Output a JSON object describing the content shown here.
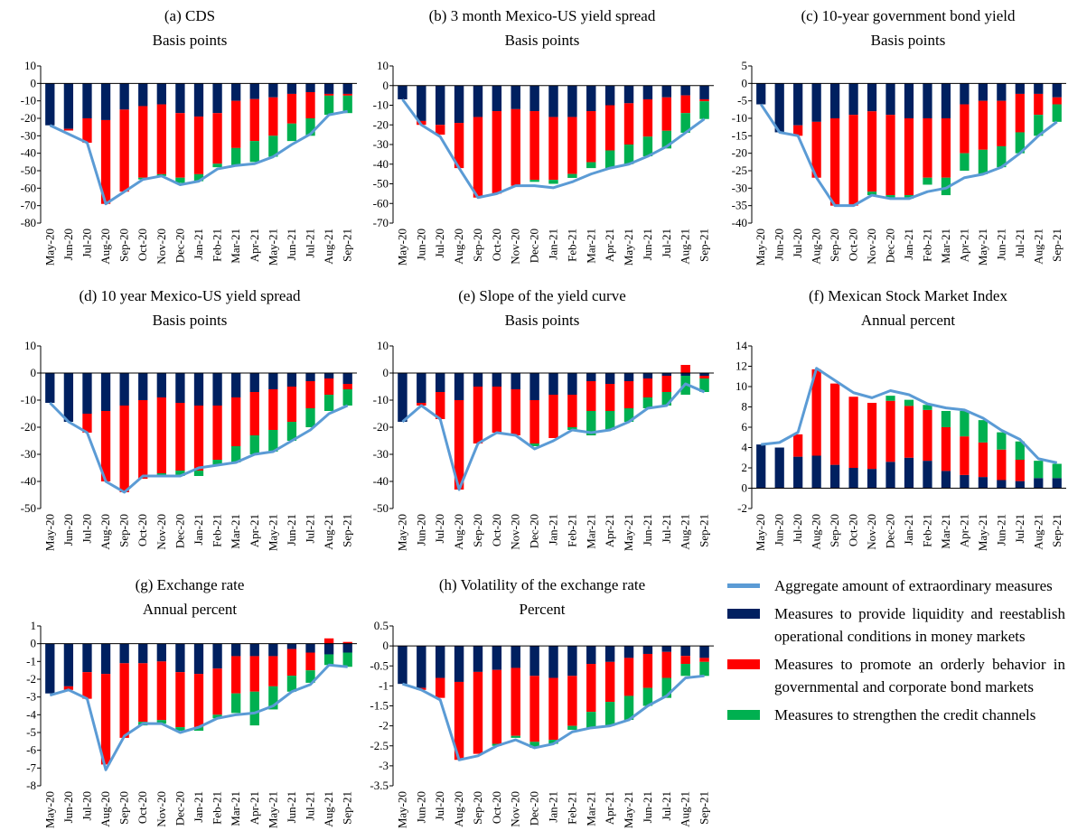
{
  "chart_data": [
    {
      "type": "bar",
      "title": "(a) CDS",
      "subtitle": "Basis points",
      "categories": [
        "May-20",
        "Jun-20",
        "Jul-20",
        "Aug-20",
        "Sep-20",
        "Oct-20",
        "Nov-20",
        "Dec-20",
        "Jan-21",
        "Feb-21",
        "Mar-21",
        "Apr-21",
        "May-21",
        "Jun-21",
        "Jul-21",
        "Aug-21",
        "Sep-21"
      ],
      "ylim": [
        -80,
        10
      ],
      "yticks": [
        10,
        0,
        -10,
        -20,
        -30,
        -40,
        -50,
        -60,
        -70,
        -80
      ],
      "series": [
        {
          "type": "line",
          "color": "#5b9bd5",
          "values": [
            -24,
            -29,
            -34,
            -69,
            -62,
            -55,
            -53,
            -58,
            -56,
            -49,
            -47,
            -46,
            -42,
            -35,
            -29,
            -18,
            -16
          ]
        },
        {
          "color": "#002060",
          "values": [
            -24,
            -26,
            -20,
            -21,
            -15,
            -13,
            -12,
            -17,
            -19,
            -17,
            -10,
            -9,
            -8,
            -6,
            -5,
            -6,
            -6
          ]
        },
        {
          "color": "#ff0000",
          "values": [
            0,
            -1,
            -14,
            -48,
            -47,
            -41,
            -40,
            -37,
            -33,
            -29,
            -27,
            -24,
            -22,
            -17,
            -15,
            -1,
            -1
          ]
        },
        {
          "color": "#00b050",
          "values": [
            0,
            0,
            0,
            0,
            0,
            -1,
            -1,
            -3,
            -4,
            -2,
            -10,
            -12,
            -12,
            -10,
            -10,
            -11,
            -10
          ]
        }
      ]
    },
    {
      "type": "bar",
      "title": "(b) 3 month Mexico-US yield spread",
      "subtitle": "Basis points",
      "categories": [
        "May-20",
        "Jun-20",
        "Jul-20",
        "Aug-20",
        "Sep-20",
        "Oct-20",
        "Nov-20",
        "Dec-20",
        "Jan-21",
        "Feb-21",
        "Mar-21",
        "Apr-21",
        "May-21",
        "Jun-21",
        "Jul-21",
        "Aug-21",
        "Sep-21"
      ],
      "ylim": [
        -70,
        10
      ],
      "yticks": [
        10,
        0,
        -10,
        -20,
        -30,
        -40,
        -50,
        -60,
        -70
      ],
      "series": [
        {
          "type": "line",
          "color": "#5b9bd5",
          "values": [
            -7,
            -20,
            -26,
            -42,
            -57,
            -55,
            -51,
            -51,
            -52,
            -49,
            -45,
            -42,
            -40,
            -36,
            -31,
            -24,
            -17
          ]
        },
        {
          "color": "#002060",
          "values": [
            -7,
            -18,
            -20,
            -19,
            -16,
            -13,
            -12,
            -13,
            -16,
            -16,
            -13,
            -10,
            -9,
            -7,
            -6,
            -5,
            -7
          ]
        },
        {
          "color": "#ff0000",
          "values": [
            0,
            -2,
            -5,
            -23,
            -41,
            -42,
            -39,
            -35,
            -32,
            -29,
            -26,
            -23,
            -21,
            -19,
            -17,
            -9,
            -1
          ]
        },
        {
          "color": "#00b050",
          "values": [
            0,
            0,
            0,
            0,
            0,
            0,
            0,
            -1,
            -2,
            -2,
            -3,
            -9,
            -10,
            -10,
            -9,
            -10,
            -9
          ]
        }
      ]
    },
    {
      "type": "bar",
      "title": "(c) 10-year government bond yield",
      "subtitle": "Basis points",
      "categories": [
        "May-20",
        "Jun-20",
        "Jul-20",
        "Aug-20",
        "Sep-20",
        "Oct-20",
        "Nov-20",
        "Dec-20",
        "Jan-21",
        "Feb-21",
        "Mar-21",
        "Apr-21",
        "May-21",
        "Jun-21",
        "Jul-21",
        "Aug-21",
        "Sep-21"
      ],
      "ylim": [
        -40,
        5
      ],
      "yticks": [
        5,
        0,
        -5,
        -10,
        -15,
        -20,
        -25,
        -30,
        -35,
        -40
      ],
      "series": [
        {
          "type": "line",
          "color": "#5b9bd5",
          "values": [
            -6,
            -14,
            -15,
            -27,
            -35,
            -35,
            -32,
            -33,
            -33,
            -31,
            -30,
            -27,
            -26,
            -24,
            -20,
            -15,
            -11
          ]
        },
        {
          "color": "#002060",
          "values": [
            -6,
            -14,
            -12,
            -11,
            -10,
            -9,
            -8,
            -9,
            -10,
            -10,
            -10,
            -6,
            -5,
            -5,
            -3,
            -3,
            -4
          ]
        },
        {
          "color": "#ff0000",
          "values": [
            0,
            0,
            -3,
            -16,
            -25,
            -26,
            -23,
            -23,
            -22,
            -17,
            -17,
            -14,
            -14,
            -13,
            -11,
            -6,
            -2
          ]
        },
        {
          "color": "#00b050",
          "values": [
            0,
            0,
            0,
            0,
            0,
            0,
            -1,
            -1,
            -1,
            -2,
            -5,
            -5,
            -7,
            -6,
            -6,
            -6,
            -5
          ]
        }
      ]
    },
    {
      "type": "bar",
      "title": "(d) 10 year Mexico-US yield spread",
      "subtitle": "Basis points",
      "categories": [
        "May-20",
        "Jun-20",
        "Jul-20",
        "Aug-20",
        "Sep-20",
        "Oct-20",
        "Nov-20",
        "Dec-20",
        "Jan-21",
        "Feb-21",
        "Mar-21",
        "Apr-21",
        "May-21",
        "Jun-21",
        "Jul-21",
        "Aug-21",
        "Sep-21"
      ],
      "ylim": [
        -50,
        10
      ],
      "yticks": [
        10,
        0,
        -10,
        -20,
        -30,
        -40,
        -50
      ],
      "series": [
        {
          "type": "line",
          "color": "#5b9bd5",
          "values": [
            -11,
            -18,
            -22,
            -40,
            -44,
            -38,
            -38,
            -38,
            -35,
            -34,
            -33,
            -30,
            -29,
            -25,
            -21,
            -15,
            -12
          ]
        },
        {
          "color": "#002060",
          "values": [
            -11,
            -18,
            -15,
            -14,
            -12,
            -10,
            -9,
            -11,
            -12,
            -12,
            -9,
            -7,
            -6,
            -5,
            -3,
            -2,
            -4
          ]
        },
        {
          "color": "#ff0000",
          "values": [
            0,
            0,
            -7,
            -26,
            -32,
            -29,
            -28,
            -25,
            -24,
            -20,
            -18,
            -16,
            -15,
            -13,
            -10,
            -6,
            -2
          ]
        },
        {
          "color": "#00b050",
          "values": [
            0,
            0,
            0,
            0,
            0,
            0,
            -1,
            -2,
            -2,
            -2,
            -6,
            -7,
            -8,
            -7,
            -7,
            -6,
            -6
          ]
        }
      ]
    },
    {
      "type": "bar",
      "title": "(e) Slope of the yield curve",
      "subtitle": "Basis points",
      "categories": [
        "May-20",
        "Jun-20",
        "Jul-20",
        "Aug-20",
        "Sep-20",
        "Oct-20",
        "Nov-20",
        "Dec-20",
        "Jan-21",
        "Feb-21",
        "Mar-21",
        "Apr-21",
        "May-21",
        "Jun-21",
        "Jul-21",
        "Aug-21",
        "Sep-21"
      ],
      "ylim": [
        -50,
        10
      ],
      "yticks": [
        10,
        0,
        -10,
        -20,
        -30,
        -40,
        -50
      ],
      "series": [
        {
          "type": "line",
          "color": "#5b9bd5",
          "values": [
            -18,
            -12,
            -17,
            -43,
            -26,
            -22,
            -23,
            -28,
            -25,
            -21,
            -22,
            -21,
            -18,
            -13,
            -12,
            -4,
            -7
          ]
        },
        {
          "color": "#002060",
          "values": [
            -18,
            -11,
            -7,
            -10,
            -5,
            -5,
            -6,
            -10,
            -8,
            -8,
            -3,
            -4,
            -3,
            -2,
            -1,
            -1,
            -1
          ]
        },
        {
          "color": "#ff0000",
          "values": [
            0,
            -1,
            -10,
            -33,
            -21,
            -17,
            -17,
            -16,
            -16,
            -12,
            -11,
            -10,
            -10,
            -7,
            -6,
            3,
            -1
          ]
        },
        {
          "color": "#00b050",
          "values": [
            0,
            0,
            0,
            0,
            0,
            0,
            0,
            -1,
            0,
            -1,
            -9,
            -7,
            -5,
            -4,
            -5,
            -7,
            -5
          ]
        }
      ]
    },
    {
      "type": "bar",
      "title": "(f) Mexican Stock Market Index",
      "subtitle": "Annual percent",
      "categories": [
        "May-20",
        "Jun-20",
        "Jul-20",
        "Aug-20",
        "Sep-20",
        "Oct-20",
        "Nov-20",
        "Dec-20",
        "Jan-21",
        "Feb-21",
        "Mar-21",
        "Apr-21",
        "May-21",
        "Jun-21",
        "Jul-21",
        "Aug-21",
        "Sep-21"
      ],
      "ylim": [
        -2,
        14
      ],
      "yticks": [
        14,
        12,
        10,
        8,
        6,
        4,
        2,
        0,
        -2
      ],
      "series": [
        {
          "type": "line",
          "color": "#5b9bd5",
          "values": [
            4.3,
            4.5,
            5.5,
            11.8,
            10.6,
            9.4,
            8.9,
            9.6,
            9.2,
            8.3,
            7.9,
            7.7,
            6.9,
            5.7,
            4.8,
            2.9,
            2.5
          ]
        },
        {
          "color": "#002060",
          "values": [
            4.3,
            4.0,
            3.1,
            3.2,
            2.3,
            2.0,
            1.9,
            2.6,
            3.0,
            2.7,
            1.7,
            1.3,
            1.1,
            0.8,
            0.7,
            1.0,
            1.0
          ]
        },
        {
          "color": "#ff0000",
          "values": [
            0,
            0,
            2.2,
            8.5,
            8.0,
            7.0,
            6.5,
            6.0,
            5.1,
            5.0,
            4.3,
            3.8,
            3.4,
            3.0,
            2.1,
            0,
            0
          ]
        },
        {
          "color": "#00b050",
          "values": [
            0,
            0,
            0,
            0,
            0,
            0,
            0,
            0.5,
            0.6,
            0.5,
            1.6,
            2.5,
            2.2,
            1.7,
            1.8,
            1.7,
            1.4
          ]
        }
      ]
    },
    {
      "type": "bar",
      "title": "(g) Exchange rate",
      "subtitle": "Annual percent",
      "categories": [
        "May-20",
        "Jun-20",
        "Jul-20",
        "Aug-20",
        "Sep-20",
        "Oct-20",
        "Nov-20",
        "Dec-20",
        "Jan-21",
        "Feb-21",
        "Mar-21",
        "Apr-21",
        "May-21",
        "Jun-21",
        "Jul-21",
        "Aug-21",
        "Sep-21"
      ],
      "ylim": [
        -8,
        1
      ],
      "yticks": [
        1,
        0,
        -1,
        -2,
        -3,
        -4,
        -5,
        -6,
        -7,
        -8
      ],
      "series": [
        {
          "type": "line",
          "color": "#5b9bd5",
          "values": [
            -2.9,
            -2.6,
            -3.1,
            -7.1,
            -5.2,
            -4.5,
            -4.5,
            -5.0,
            -4.7,
            -4.2,
            -4.0,
            -3.9,
            -3.5,
            -2.7,
            -2.3,
            -1.2,
            -1.3
          ]
        },
        {
          "color": "#002060",
          "values": [
            -2.8,
            -2.4,
            -1.6,
            -1.7,
            -1.1,
            -1.1,
            -1.0,
            -1.6,
            -1.7,
            -1.4,
            -0.7,
            -0.7,
            -0.7,
            -0.3,
            -0.5,
            -0.6,
            -0.5
          ]
        },
        {
          "color": "#ff0000",
          "values": [
            0,
            -0.2,
            -1.5,
            -5.1,
            -4.2,
            -3.3,
            -3.3,
            -3.1,
            -3.0,
            -2.6,
            -2.1,
            -2.0,
            -1.7,
            -1.5,
            -1.0,
            0.3,
            0.1
          ]
        },
        {
          "color": "#00b050",
          "values": [
            0,
            0,
            0,
            0,
            0,
            -0.2,
            -0.2,
            -0.2,
            -0.2,
            -0.2,
            -1.1,
            -1.9,
            -1.3,
            -0.9,
            -0.7,
            -0.6,
            -0.8
          ]
        }
      ]
    },
    {
      "type": "bar",
      "title": "(h) Volatility of the exchange rate",
      "subtitle": "Percent",
      "categories": [
        "May-20",
        "Jun-20",
        "Jul-20",
        "Aug-20",
        "Sep-20",
        "Oct-20",
        "Nov-20",
        "Dec-20",
        "Jan-21",
        "Feb-21",
        "Mar-21",
        "Apr-21",
        "May-21",
        "Jun-21",
        "Jul-21",
        "Aug-21",
        "Sep-21"
      ],
      "ylim": [
        -3.5,
        0.5
      ],
      "yticks": [
        0.5,
        0,
        -0.5,
        -1,
        -1.5,
        -2,
        -2.5,
        -3,
        -3.5
      ],
      "series": [
        {
          "type": "line",
          "name": "Aggregate amount of extraordinary measures",
          "color": "#5b9bd5",
          "values": [
            -0.95,
            -1.1,
            -1.35,
            -2.85,
            -2.75,
            -2.5,
            -2.35,
            -2.55,
            -2.45,
            -2.15,
            -2.05,
            -2.0,
            -1.85,
            -1.5,
            -1.25,
            -0.8,
            -0.75
          ]
        },
        {
          "name": "Measures to provide liquidity and reestablish operational conditions in money markets",
          "color": "#002060",
          "values": [
            -0.95,
            -1.05,
            -0.8,
            -0.9,
            -0.65,
            -0.6,
            -0.55,
            -0.75,
            -0.8,
            -0.75,
            -0.45,
            -0.4,
            -0.3,
            -0.2,
            -0.15,
            -0.25,
            -0.3
          ]
        },
        {
          "name": "Measures to promote an orderly behavior in governmental and corporate bond markets",
          "color": "#ff0000",
          "values": [
            0,
            -0.05,
            -0.5,
            -1.95,
            -2.05,
            -1.85,
            -1.7,
            -1.65,
            -1.55,
            -1.25,
            -1.2,
            -1.0,
            -0.95,
            -0.85,
            -0.65,
            -0.2,
            -0.1
          ]
        },
        {
          "name": "Measures to strengthen the credit channels",
          "color": "#00b050",
          "values": [
            0,
            0,
            0,
            0,
            0,
            -0.05,
            -0.05,
            -0.15,
            -0.1,
            -0.1,
            -0.4,
            -0.6,
            -0.6,
            -0.45,
            -0.5,
            -0.3,
            -0.35
          ]
        }
      ]
    }
  ]
}
